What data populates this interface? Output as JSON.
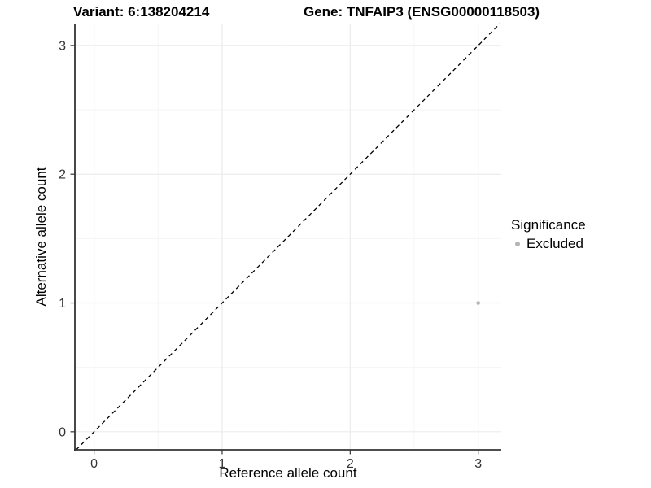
{
  "chart_data": {
    "type": "scatter",
    "titles": {
      "left": "Variant: 6:138204214",
      "right": "Gene: TNFAIP3 (ENSG00000118503)"
    },
    "xlabel": "Reference allele count",
    "ylabel": "Alternative allele count",
    "xlim": [
      -0.15,
      3.18
    ],
    "ylim": [
      -0.14,
      3.17
    ],
    "xticks": [
      0,
      1,
      2,
      3
    ],
    "yticks": [
      0,
      1,
      2,
      3
    ],
    "xticks_minor": [
      0.5,
      1.5,
      2.5
    ],
    "yticks_minor": [
      0.5,
      1.5,
      2.5
    ],
    "grid": true,
    "identity_line": {
      "style": "dashed",
      "color": "#000000",
      "from": -0.14,
      "to": 3.17
    },
    "series": [
      {
        "name": "Excluded",
        "color": "#b5b5b5",
        "points": [
          {
            "x": 3,
            "y": 1
          }
        ]
      }
    ],
    "legend": {
      "title": "Significance",
      "position": "right",
      "items": [
        {
          "label": "Excluded",
          "color": "#b5b5b5"
        }
      ]
    },
    "colors": {
      "grid_major": "#ebebeb",
      "grid_minor": "#f5f5f5",
      "axis_line": "#343434",
      "tick_mark": "#343434",
      "tick_text": "#333333"
    }
  }
}
